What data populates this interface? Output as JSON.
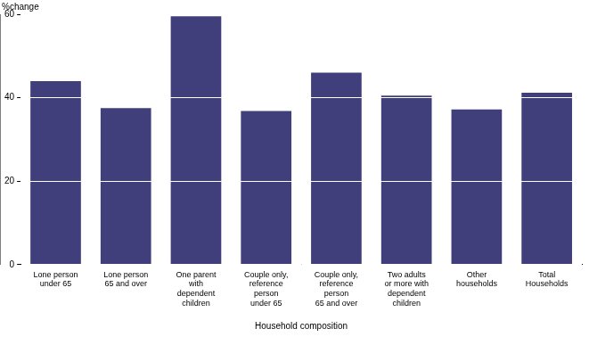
{
  "chart_data": {
    "type": "bar",
    "y_label": "%change",
    "x_label": "Household composition",
    "categories": [
      "Lone person\nunder 65",
      "Lone person\n65 and over",
      "One parent\nwith\ndependent\nchildren",
      "Couple only,\nreference\nperson\nunder 65",
      "Couple only,\nreference\nperson\n65 and over",
      "Two adults\nor more with\ndependent\nchildren",
      "Other\nhouseholds",
      "Total\nHouseholds"
    ],
    "values": [
      44,
      37.5,
      59.5,
      36.8,
      46,
      40.5,
      37.2,
      41.2
    ],
    "color": "#403f7c",
    "ylim": [
      0,
      60
    ],
    "yticks": [
      0,
      20,
      40,
      60
    ],
    "grid": true
  }
}
